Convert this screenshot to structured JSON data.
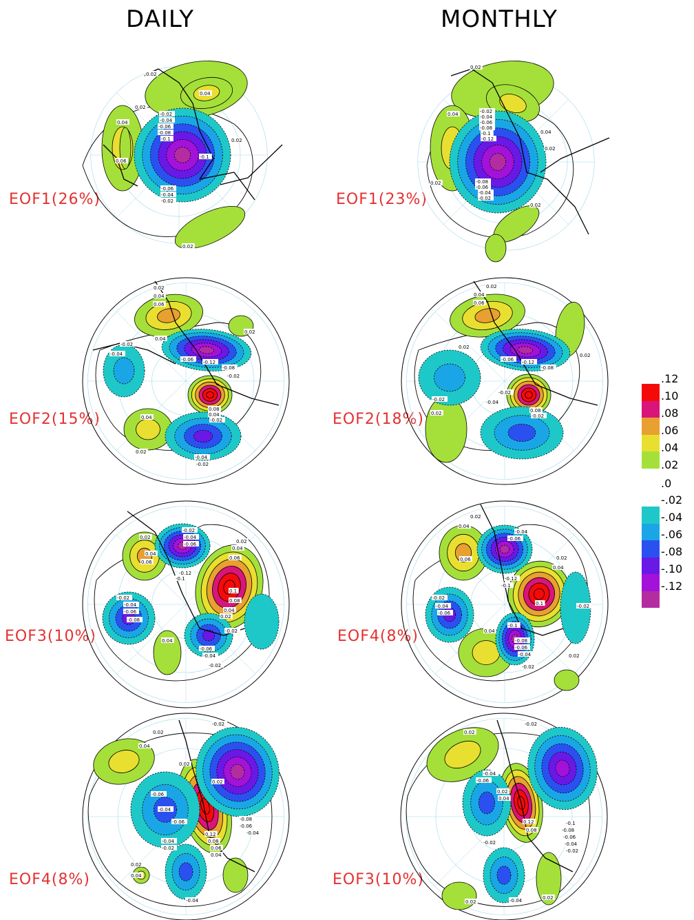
{
  "titles": {
    "daily": "DAILY",
    "monthly": "MONTHLY"
  },
  "panels": [
    {
      "id": "d1",
      "label": "EOF1(26%)"
    },
    {
      "id": "m1",
      "label": "EOF1(23%)"
    },
    {
      "id": "d2",
      "label": "EOF2(15%)"
    },
    {
      "id": "m2",
      "label": "EOF2(18%)"
    },
    {
      "id": "d3",
      "label": "EOF3(10%)"
    },
    {
      "id": "m3",
      "label": "EOF4(8%)"
    },
    {
      "id": "d4",
      "label": "EOF4(8%)"
    },
    {
      "id": "m4",
      "label": "EOF3(10%)"
    }
  ],
  "colorbar": {
    "labels": [
      ".12",
      ".10",
      ".08",
      ".06",
      ".04",
      ".02",
      ".0",
      "-.02",
      "-.04",
      "-.06",
      "-.08",
      "-.10",
      "-.12"
    ],
    "positive_colors": [
      "#f50a0a",
      "#d9157a",
      "#e8a030",
      "#e8df30",
      "#a5e03a"
    ],
    "negative_colors": [
      "#1fc8c8",
      "#1aa6e6",
      "#2b50f0",
      "#6a18e6",
      "#a212d8",
      "#b42da0"
    ]
  },
  "contour_labels": {
    "pos": [
      "0.02",
      "0.04",
      "0.06",
      "0.08",
      "0.1",
      "0.12"
    ],
    "neg": [
      "-0.02",
      "-0.04",
      "-0.06",
      "-0.08",
      "-0.1",
      "-0.12"
    ],
    "zero": "0"
  }
}
